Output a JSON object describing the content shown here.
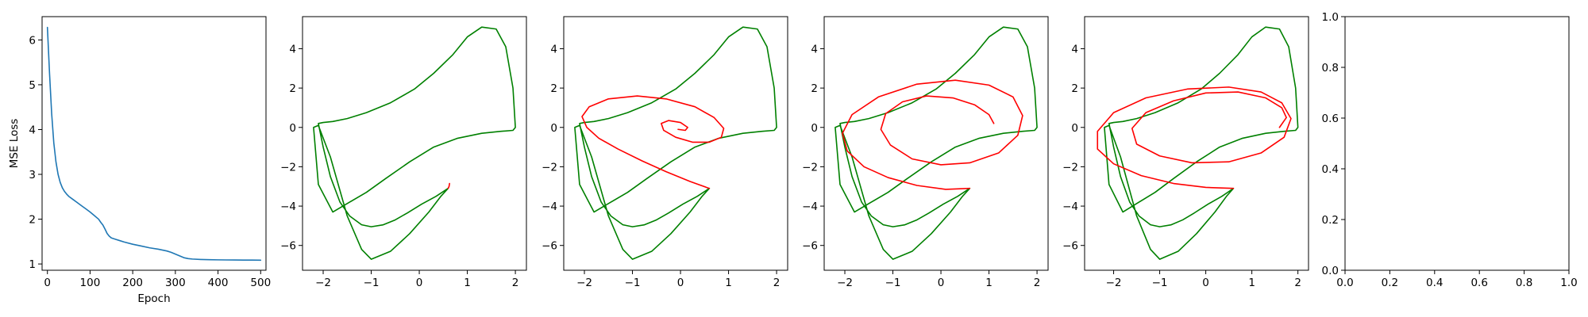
{
  "chart_data": [
    {
      "type": "line",
      "title": "",
      "xlabel": "Epoch",
      "ylabel": "MSE Loss",
      "xlim": [
        -12.5,
        512.5
      ],
      "ylim": [
        0.86,
        6.52
      ],
      "xticks": [
        0,
        100,
        200,
        300,
        400,
        500
      ],
      "yticks": [
        1,
        2,
        3,
        4,
        5,
        6
      ],
      "grid": false,
      "series": [
        {
          "color": "#1f77b4",
          "x": [
            0,
            5,
            10,
            15,
            20,
            25,
            30,
            35,
            40,
            45,
            50,
            60,
            70,
            80,
            90,
            100,
            110,
            120,
            125,
            130,
            135,
            140,
            145,
            150,
            160,
            170,
            180,
            200,
            220,
            240,
            260,
            280,
            290,
            300,
            310,
            320,
            330,
            340,
            360,
            380,
            400,
            420,
            440,
            460,
            480,
            500
          ],
          "y": [
            6.28,
            5.25,
            4.35,
            3.7,
            3.28,
            3.0,
            2.82,
            2.7,
            2.62,
            2.56,
            2.51,
            2.44,
            2.37,
            2.3,
            2.23,
            2.16,
            2.08,
            2.0,
            1.93,
            1.87,
            1.78,
            1.68,
            1.62,
            1.58,
            1.55,
            1.52,
            1.49,
            1.44,
            1.4,
            1.36,
            1.33,
            1.29,
            1.26,
            1.22,
            1.18,
            1.14,
            1.12,
            1.11,
            1.1,
            1.095,
            1.092,
            1.09,
            1.088,
            1.087,
            1.086,
            1.085
          ]
        }
      ]
    },
    {
      "type": "line",
      "title": "",
      "xlabel": "",
      "ylabel": "",
      "xlim": [
        -2.43,
        2.23
      ],
      "ylim": [
        -7.26,
        5.63
      ],
      "xticks": [
        -2,
        -1,
        0,
        1,
        2
      ],
      "yticks": [
        -6,
        -4,
        -2,
        0,
        2,
        4
      ],
      "grid": false,
      "series": [
        {
          "color": "#008000",
          "x": [
            0.6,
            0.35,
            0.05,
            -0.25,
            -0.5,
            -0.75,
            -1.0,
            -1.2,
            -1.45,
            -1.65,
            -1.85,
            -2.0,
            -2.1,
            -2.0,
            -1.8,
            -1.5,
            -1.1,
            -0.6,
            -0.1,
            0.3,
            0.7,
            1.0,
            1.3,
            1.6,
            1.8,
            1.95,
            2.0,
            1.95,
            1.7,
            1.3,
            0.8,
            0.3,
            -0.2,
            -0.7,
            -1.1,
            -1.45,
            -1.8,
            -2.1,
            -2.2,
            -2.1,
            -1.85,
            -1.5,
            -1.2,
            -1.0,
            -0.6,
            -0.2,
            0.2,
            0.45,
            0.6
          ],
          "y": [
            -3.1,
            -3.5,
            -3.9,
            -4.35,
            -4.7,
            -4.95,
            -5.05,
            -4.95,
            -4.5,
            -3.8,
            -2.5,
            -1.0,
            0.2,
            0.25,
            0.3,
            0.45,
            0.75,
            1.25,
            1.95,
            2.75,
            3.7,
            4.6,
            5.1,
            5.0,
            4.1,
            2.0,
            0.0,
            -0.15,
            -0.2,
            -0.3,
            -0.55,
            -1.0,
            -1.75,
            -2.6,
            -3.3,
            -3.8,
            -4.3,
            -2.9,
            0.0,
            0.1,
            -1.5,
            -4.5,
            -6.2,
            -6.7,
            -6.3,
            -5.4,
            -4.3,
            -3.5,
            -3.1
          ]
        },
        {
          "color": "#ff0000",
          "x": [
            0.6,
            0.62,
            0.63
          ],
          "y": [
            -3.1,
            -3.0,
            -2.85
          ]
        }
      ]
    },
    {
      "type": "line",
      "title": "",
      "xlabel": "",
      "ylabel": "",
      "xlim": [
        -2.43,
        2.23
      ],
      "ylim": [
        -7.26,
        5.63
      ],
      "xticks": [
        -2,
        -1,
        0,
        1,
        2
      ],
      "yticks": [
        -6,
        -4,
        -2,
        0,
        2,
        4
      ],
      "grid": false,
      "series": [
        {
          "color": "#008000",
          "x": [
            0.6,
            0.35,
            0.05,
            -0.25,
            -0.5,
            -0.75,
            -1.0,
            -1.2,
            -1.45,
            -1.65,
            -1.85,
            -2.0,
            -2.1,
            -2.0,
            -1.8,
            -1.5,
            -1.1,
            -0.6,
            -0.1,
            0.3,
            0.7,
            1.0,
            1.3,
            1.6,
            1.8,
            1.95,
            2.0,
            1.95,
            1.7,
            1.3,
            0.8,
            0.3,
            -0.2,
            -0.7,
            -1.1,
            -1.45,
            -1.8,
            -2.1,
            -2.2,
            -2.1,
            -1.85,
            -1.5,
            -1.2,
            -1.0,
            -0.6,
            -0.2,
            0.2,
            0.45,
            0.6
          ],
          "y": [
            -3.1,
            -3.5,
            -3.9,
            -4.35,
            -4.7,
            -4.95,
            -5.05,
            -4.95,
            -4.5,
            -3.8,
            -2.5,
            -1.0,
            0.2,
            0.25,
            0.3,
            0.45,
            0.75,
            1.25,
            1.95,
            2.75,
            3.7,
            4.6,
            5.1,
            5.0,
            4.1,
            2.0,
            0.0,
            -0.15,
            -0.2,
            -0.3,
            -0.55,
            -1.0,
            -1.75,
            -2.6,
            -3.3,
            -3.8,
            -4.3,
            -2.9,
            0.0,
            0.1,
            -1.5,
            -4.5,
            -6.2,
            -6.7,
            -6.3,
            -5.4,
            -4.3,
            -3.5,
            -3.1
          ]
        },
        {
          "color": "#ff0000",
          "x": [
            0.6,
            0.2,
            -0.3,
            -0.8,
            -1.3,
            -1.7,
            -1.95,
            -2.05,
            -1.9,
            -1.5,
            -0.9,
            -0.3,
            0.3,
            0.7,
            0.9,
            0.85,
            0.6,
            0.25,
            -0.1,
            -0.35,
            -0.4,
            -0.25,
            0.0,
            0.15,
            0.1,
            -0.05
          ],
          "y": [
            -3.1,
            -2.75,
            -2.25,
            -1.7,
            -1.1,
            -0.55,
            0.0,
            0.55,
            1.05,
            1.45,
            1.6,
            1.45,
            1.05,
            0.5,
            -0.05,
            -0.5,
            -0.75,
            -0.75,
            -0.5,
            -0.15,
            0.2,
            0.35,
            0.25,
            0.0,
            -0.15,
            -0.1
          ]
        }
      ]
    },
    {
      "type": "line",
      "title": "",
      "xlabel": "",
      "ylabel": "",
      "xlim": [
        -2.43,
        2.23
      ],
      "ylim": [
        -7.26,
        5.63
      ],
      "xticks": [
        -2,
        -1,
        0,
        1,
        2
      ],
      "yticks": [
        -6,
        -4,
        -2,
        0,
        2,
        4
      ],
      "grid": false,
      "series": [
        {
          "color": "#008000",
          "x": [
            0.6,
            0.35,
            0.05,
            -0.25,
            -0.5,
            -0.75,
            -1.0,
            -1.2,
            -1.45,
            -1.65,
            -1.85,
            -2.0,
            -2.1,
            -2.0,
            -1.8,
            -1.5,
            -1.1,
            -0.6,
            -0.1,
            0.3,
            0.7,
            1.0,
            1.3,
            1.6,
            1.8,
            1.95,
            2.0,
            1.95,
            1.7,
            1.3,
            0.8,
            0.3,
            -0.2,
            -0.7,
            -1.1,
            -1.45,
            -1.8,
            -2.1,
            -2.2,
            -2.1,
            -1.85,
            -1.5,
            -1.2,
            -1.0,
            -0.6,
            -0.2,
            0.2,
            0.45,
            0.6
          ],
          "y": [
            -3.1,
            -3.5,
            -3.9,
            -4.35,
            -4.7,
            -4.95,
            -5.05,
            -4.95,
            -4.5,
            -3.8,
            -2.5,
            -1.0,
            0.2,
            0.25,
            0.3,
            0.45,
            0.75,
            1.25,
            1.95,
            2.75,
            3.7,
            4.6,
            5.1,
            5.0,
            4.1,
            2.0,
            0.0,
            -0.15,
            -0.2,
            -0.3,
            -0.55,
            -1.0,
            -1.75,
            -2.6,
            -3.3,
            -3.8,
            -4.3,
            -2.9,
            0.0,
            0.1,
            -1.5,
            -4.5,
            -6.2,
            -6.7,
            -6.3,
            -5.4,
            -4.3,
            -3.5,
            -3.1
          ]
        },
        {
          "color": "#ff0000",
          "x": [
            0.6,
            0.1,
            -0.5,
            -1.1,
            -1.6,
            -1.95,
            -2.05,
            -1.85,
            -1.3,
            -0.5,
            0.3,
            1.0,
            1.5,
            1.7,
            1.6,
            1.2,
            0.6,
            0.0,
            -0.6,
            -1.05,
            -1.25,
            -1.15,
            -0.8,
            -0.3,
            0.25,
            0.7,
            1.0,
            1.1
          ],
          "y": [
            -3.1,
            -3.15,
            -2.95,
            -2.55,
            -2.0,
            -1.2,
            -0.3,
            0.65,
            1.55,
            2.2,
            2.4,
            2.15,
            1.55,
            0.6,
            -0.4,
            -1.3,
            -1.8,
            -1.9,
            -1.6,
            -0.9,
            -0.1,
            0.7,
            1.3,
            1.6,
            1.5,
            1.15,
            0.65,
            0.2
          ]
        }
      ]
    },
    {
      "type": "line",
      "title": "",
      "xlabel": "",
      "ylabel": "",
      "xlim": [
        -2.63,
        2.23
      ],
      "ylim": [
        -7.26,
        5.63
      ],
      "xticks": [
        -2,
        -1,
        0,
        1,
        2
      ],
      "yticks": [
        -6,
        -4,
        -2,
        0,
        2,
        4
      ],
      "grid": false,
      "series": [
        {
          "color": "#008000",
          "x": [
            0.6,
            0.35,
            0.05,
            -0.25,
            -0.5,
            -0.75,
            -1.0,
            -1.2,
            -1.45,
            -1.65,
            -1.85,
            -2.0,
            -2.1,
            -2.0,
            -1.8,
            -1.5,
            -1.1,
            -0.6,
            -0.1,
            0.3,
            0.7,
            1.0,
            1.3,
            1.6,
            1.8,
            1.95,
            2.0,
            1.95,
            1.7,
            1.3,
            0.8,
            0.3,
            -0.2,
            -0.7,
            -1.1,
            -1.45,
            -1.8,
            -2.1,
            -2.2,
            -2.1,
            -1.85,
            -1.5,
            -1.2,
            -1.0,
            -0.6,
            -0.2,
            0.2,
            0.45,
            0.6
          ],
          "y": [
            -3.1,
            -3.5,
            -3.9,
            -4.35,
            -4.7,
            -4.95,
            -5.05,
            -4.95,
            -4.5,
            -3.8,
            -2.5,
            -1.0,
            0.2,
            0.25,
            0.3,
            0.45,
            0.75,
            1.25,
            1.95,
            2.75,
            3.7,
            4.6,
            5.1,
            5.0,
            4.1,
            2.0,
            0.0,
            -0.15,
            -0.2,
            -0.3,
            -0.55,
            -1.0,
            -1.75,
            -2.6,
            -3.3,
            -3.8,
            -4.3,
            -2.9,
            0.0,
            0.1,
            -1.5,
            -4.5,
            -6.2,
            -6.7,
            -6.3,
            -5.4,
            -4.3,
            -3.5,
            -3.1
          ]
        },
        {
          "color": "#ff0000",
          "x": [
            0.6,
            0.0,
            -0.7,
            -1.4,
            -2.0,
            -2.35,
            -2.35,
            -2.0,
            -1.3,
            -0.4,
            0.5,
            1.2,
            1.65,
            1.85,
            1.7,
            1.2,
            0.5,
            -0.3,
            -1.0,
            -1.5,
            -1.6,
            -1.3,
            -0.7,
            0.0,
            0.7,
            1.3,
            1.65,
            1.75,
            1.6
          ],
          "y": [
            -3.1,
            -3.05,
            -2.85,
            -2.45,
            -1.85,
            -1.1,
            -0.2,
            0.75,
            1.5,
            1.95,
            2.05,
            1.8,
            1.25,
            0.45,
            -0.5,
            -1.3,
            -1.75,
            -1.8,
            -1.45,
            -0.85,
            -0.05,
            0.75,
            1.35,
            1.75,
            1.8,
            1.5,
            1.0,
            0.5,
            0.0
          ]
        }
      ]
    },
    {
      "type": "line",
      "title": "",
      "xlabel": "",
      "ylabel": "",
      "xlim": [
        0,
        1
      ],
      "ylim": [
        0,
        1
      ],
      "xticks": [
        0.0,
        0.2,
        0.4,
        0.6,
        0.8,
        1.0
      ],
      "yticks": [
        0.0,
        0.2,
        0.4,
        0.6,
        0.8,
        1.0
      ],
      "xtick_labels": [
        "0.0",
        "0.2",
        "0.4",
        "0.6",
        "0.8",
        "1.0"
      ],
      "ytick_labels": [
        "0.0",
        "0.2",
        "0.4",
        "0.6",
        "0.8",
        "1.0"
      ],
      "grid": false,
      "series": []
    }
  ]
}
